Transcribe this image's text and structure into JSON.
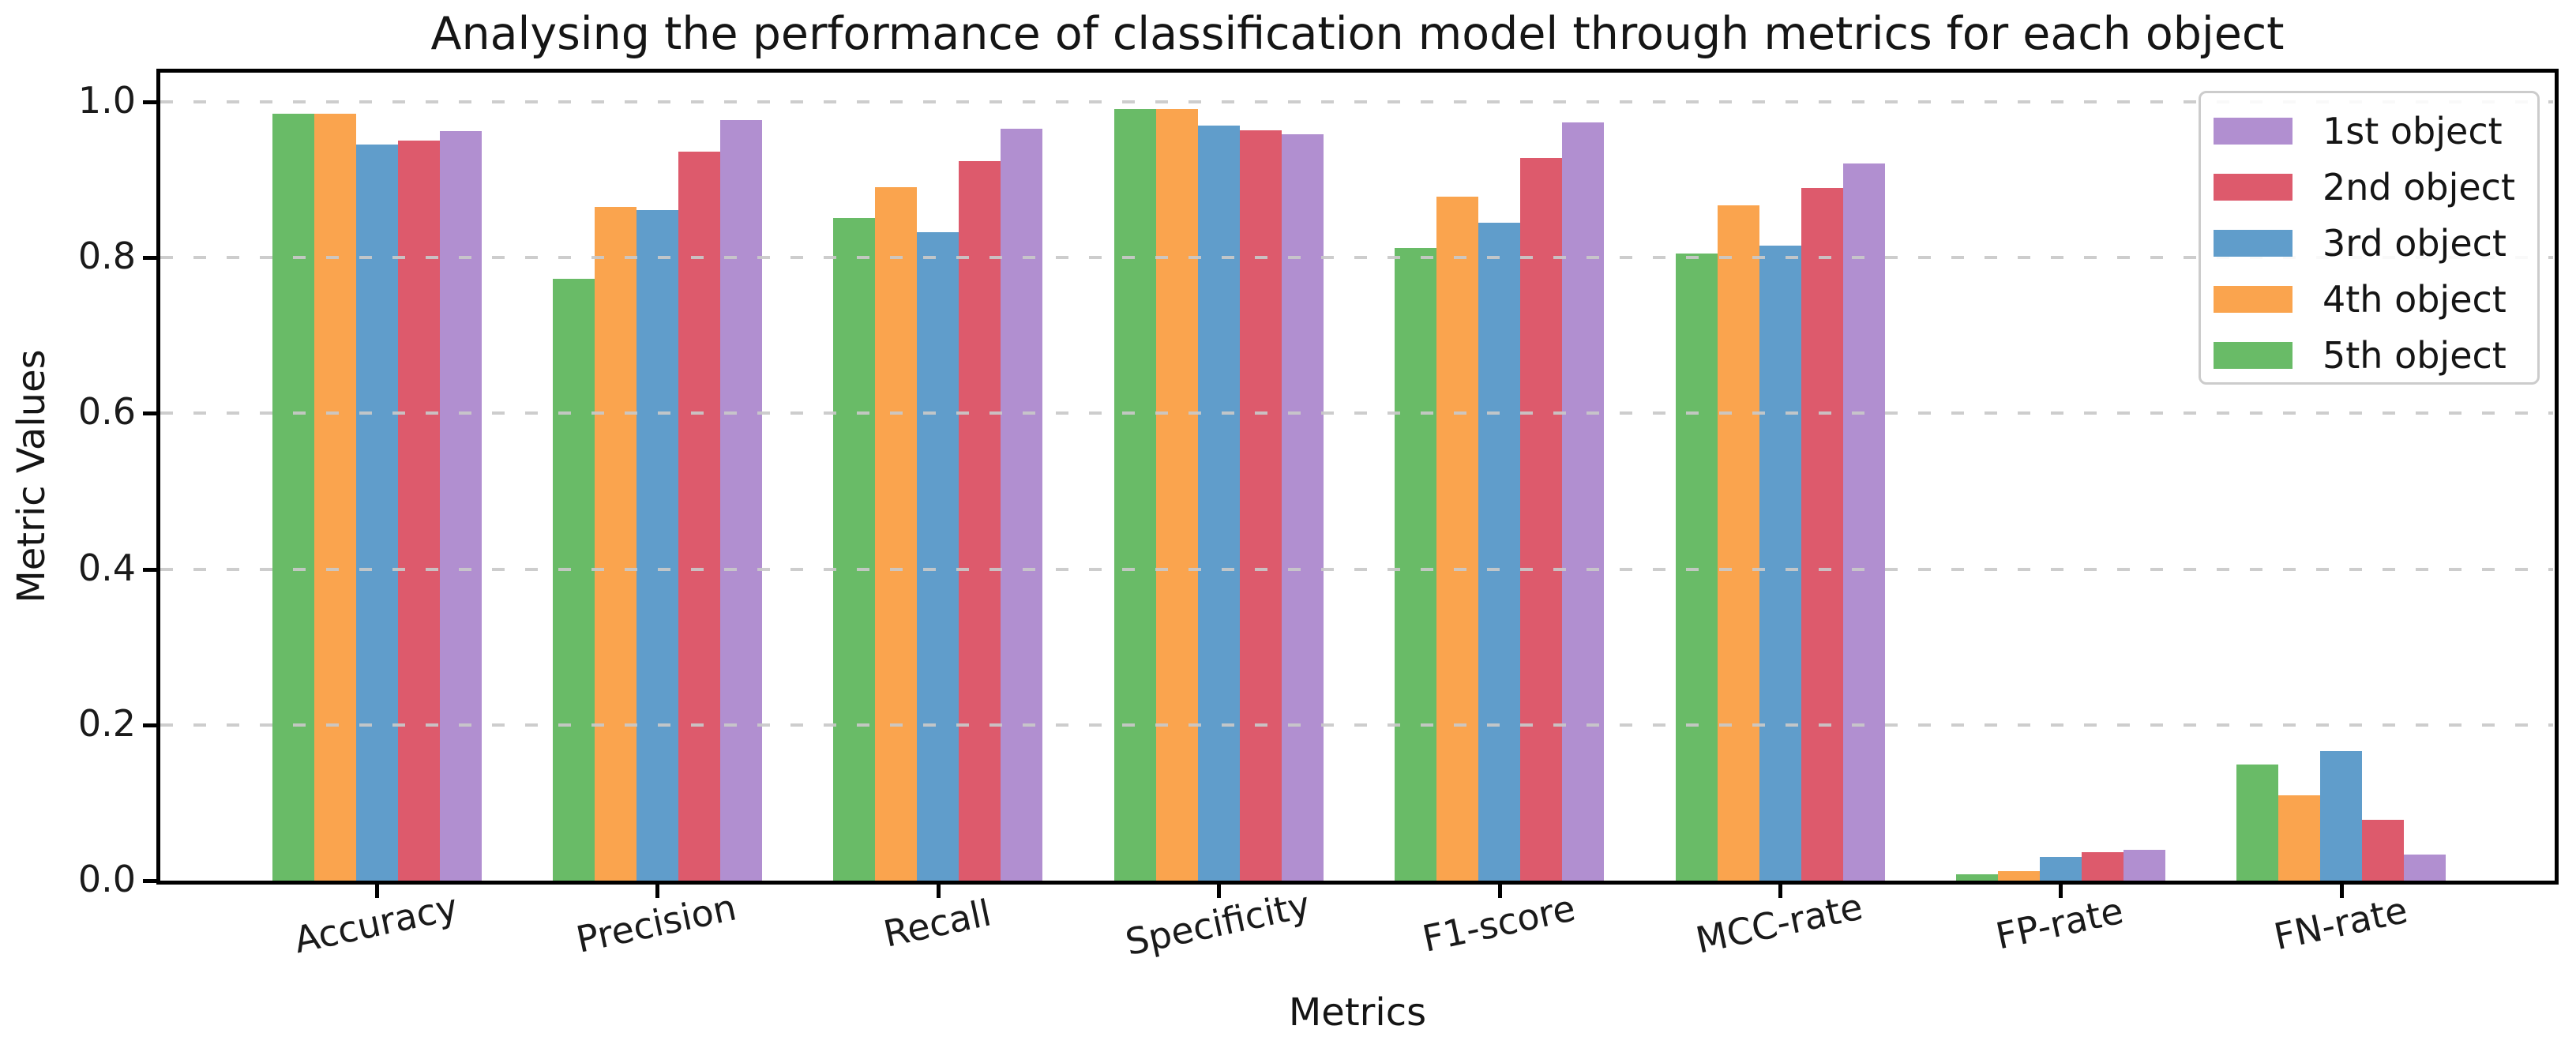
{
  "title": "Analysing the performance of classification model through metrics for each object",
  "chart_data": {
    "type": "bar",
    "title": "Analysing the performance of classification model through metrics for each object",
    "xlabel": "Metrics",
    "ylabel": "Metric Values",
    "categories": [
      "Accuracy",
      "Precision",
      "Recall",
      "Specificity",
      "F1-score",
      "MCC-rate",
      "FP-rate",
      "FN-rate"
    ],
    "series": [
      {
        "name": "1st object",
        "color": "#b18fd0",
        "values": [
          0.962,
          0.977,
          0.966,
          0.958,
          0.974,
          0.921,
          0.04,
          0.033
        ]
      },
      {
        "name": "2nd object",
        "color": "#dd5a6c",
        "values": [
          0.95,
          0.936,
          0.924,
          0.963,
          0.928,
          0.889,
          0.037,
          0.078
        ]
      },
      {
        "name": "3rd object",
        "color": "#609dcb",
        "values": [
          0.945,
          0.861,
          0.833,
          0.97,
          0.845,
          0.815,
          0.03,
          0.166
        ]
      },
      {
        "name": "4th object",
        "color": "#faa44e",
        "values": [
          0.985,
          0.865,
          0.89,
          0.991,
          0.878,
          0.867,
          0.012,
          0.11
        ]
      },
      {
        "name": "5th object",
        "color": "#69bb67",
        "values": [
          0.985,
          0.773,
          0.851,
          0.991,
          0.812,
          0.805,
          0.008,
          0.149
        ]
      }
    ],
    "bar_draw_order_within_group": [
      "5th object",
      "4th object",
      "3rd object",
      "2nd object",
      "1st object"
    ],
    "ylim": [
      0,
      1.04
    ],
    "y_ticks": [
      0.0,
      0.2,
      0.4,
      0.6,
      0.8,
      1.0
    ],
    "y_tick_labels": [
      "0.0",
      "0.2",
      "0.4",
      "0.6",
      "0.8",
      "1.0"
    ],
    "grid": {
      "axis": "y",
      "style": "dashed",
      "color": "#cccccc",
      "drawn_above_bars": true
    },
    "legend_position": "upper right",
    "x_tick_rotation_deg": 12,
    "background": "#ffffff"
  }
}
